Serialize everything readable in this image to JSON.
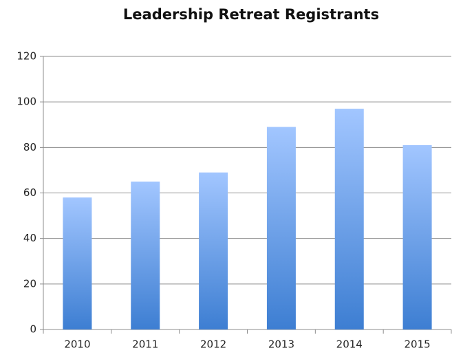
{
  "chart_data": {
    "type": "bar",
    "title": "Leadership Retreat Registrants",
    "categories": [
      "2010",
      "2011",
      "2012",
      "2013",
      "2014",
      "2015"
    ],
    "values": [
      58,
      65,
      69,
      89,
      97,
      81
    ],
    "color": "#3d7ed2",
    "gradient_top_color": "#a2c6ff",
    "ylim": [
      0,
      120
    ],
    "yticks": [
      0,
      20,
      40,
      60,
      80,
      100,
      120
    ],
    "grid": true
  }
}
